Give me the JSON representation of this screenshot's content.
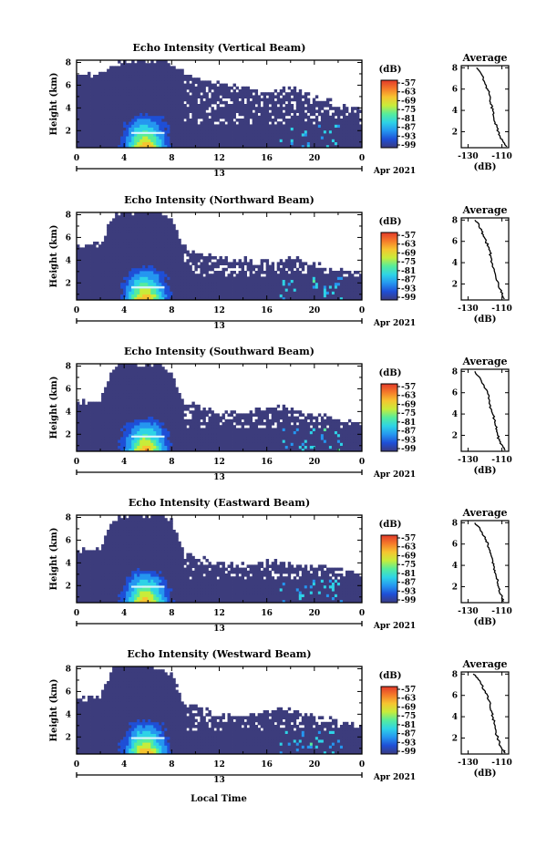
{
  "figure": {
    "xlabel": "Local Time",
    "colors": {
      "background_echo": "#3c3c7c",
      "colormap": [
        "#3a3a80",
        "#1f4fd6",
        "#2596f0",
        "#2ed3e6",
        "#56ec9c",
        "#c8ec3a",
        "#f6c430",
        "#f57a2a",
        "#e23a2a"
      ]
    }
  },
  "chart_data": [
    {
      "type": "heatmap",
      "title": "Echo Intensity (Vertical Beam)",
      "ylabel": "Height (km)",
      "xlim": [
        0,
        24
      ],
      "ylim": [
        0.5,
        8.2
      ],
      "x_ticks": [
        "0",
        "4",
        "8",
        "12",
        "16",
        "20",
        "0"
      ],
      "x_tick_values": [
        0,
        4,
        8,
        12,
        16,
        20,
        24
      ],
      "y_ticks": [
        "2",
        "4",
        "6",
        "8"
      ],
      "y_tick_values": [
        2,
        4,
        6,
        8
      ],
      "date_day": "13",
      "date_label": "Apr 2021",
      "colorbar": {
        "unit": "(dB)",
        "ticks": [
          "-57",
          "-63",
          "-69",
          "-75",
          "-81",
          "-87",
          "-93",
          "-99"
        ],
        "range": [
          -99,
          -57
        ]
      },
      "echo_top_km": [
        6.7,
        6.9,
        7.0,
        7.6,
        8.2,
        8.2,
        8.2,
        8.2,
        7.9,
        7.0,
        6.6,
        6.3,
        6.1,
        5.9,
        5.8,
        5.6,
        5.5,
        5.6,
        5.7,
        5.4,
        4.8,
        4.6,
        4.3,
        4.1,
        3.9
      ],
      "enhanced_layer_km": 1.8,
      "average_profile": {
        "title": "Average",
        "xlabel": "(dB)",
        "x_ticks": [
          "-130",
          "-110"
        ],
        "x_tick_values": [
          -130,
          -110
        ],
        "xlim": [
          -134,
          -106
        ],
        "y_ticks": [
          "2",
          "4",
          "6",
          "8"
        ],
        "y_tick_values": [
          2,
          4,
          6,
          8
        ],
        "ylim": [
          0.5,
          8.2
        ],
        "heights_km": [
          0.6,
          1.0,
          1.5,
          2.0,
          2.5,
          3.0,
          3.5,
          4.0,
          4.5,
          5.0,
          5.5,
          6.0,
          6.5,
          7.0,
          7.5,
          8.0
        ],
        "values_db": [
          -107.0,
          -109.0,
          -111.0,
          -112.0,
          -113.0,
          -114.5,
          -115.0,
          -115.5,
          -116.0,
          -117.0,
          -117.5,
          -118.5,
          -120.0,
          -121.0,
          -122.5,
          -125.0
        ]
      }
    },
    {
      "type": "heatmap",
      "title": "Echo Intensity (Northward Beam)",
      "ylabel": "Height (km)",
      "xlim": [
        0,
        24
      ],
      "ylim": [
        0.5,
        8.2
      ],
      "x_ticks": [
        "0",
        "4",
        "8",
        "12",
        "16",
        "20",
        "0"
      ],
      "x_tick_values": [
        0,
        4,
        8,
        12,
        16,
        20,
        24
      ],
      "y_ticks": [
        "2",
        "4",
        "6",
        "8"
      ],
      "y_tick_values": [
        2,
        4,
        6,
        8
      ],
      "date_day": "13",
      "date_label": "Apr 2021",
      "colorbar": {
        "unit": "(dB)",
        "ticks": [
          "-57",
          "-63",
          "-69",
          "-75",
          "-81",
          "-87",
          "-93",
          "-99"
        ],
        "range": [
          -99,
          -57
        ]
      },
      "echo_top_km": [
        5.2,
        5.3,
        5.3,
        7.8,
        8.2,
        8.2,
        8.2,
        8.1,
        7.6,
        5.2,
        4.8,
        4.5,
        4.2,
        4.1,
        4.0,
        4.0,
        3.9,
        3.8,
        4.2,
        4.0,
        3.6,
        3.4,
        3.2,
        3.0,
        2.8
      ],
      "enhanced_layer_km": 1.6,
      "average_profile": {
        "title": "Average",
        "xlabel": "(dB)",
        "x_ticks": [
          "-130",
          "-110"
        ],
        "x_tick_values": [
          -130,
          -110
        ],
        "xlim": [
          -134,
          -106
        ],
        "y_ticks": [
          "2",
          "4",
          "6",
          "8"
        ],
        "y_tick_values": [
          2,
          4,
          6,
          8
        ],
        "ylim": [
          0.5,
          8.2
        ],
        "heights_km": [
          0.6,
          1.0,
          1.5,
          2.0,
          2.5,
          3.0,
          3.5,
          4.0,
          4.5,
          5.0,
          5.5,
          6.0,
          6.5,
          7.0,
          7.5,
          8.0
        ],
        "values_db": [
          -108.5,
          -110.0,
          -111.0,
          -112.0,
          -113.5,
          -114.0,
          -115.0,
          -116.0,
          -116.5,
          -117.0,
          -118.0,
          -119.5,
          -121.0,
          -122.0,
          -123.5,
          -126.0
        ]
      }
    },
    {
      "type": "heatmap",
      "title": "Echo Intensity (Southward Beam)",
      "ylabel": "Height (km)",
      "xlim": [
        0,
        24
      ],
      "ylim": [
        0.5,
        8.2
      ],
      "x_ticks": [
        "0",
        "4",
        "8",
        "12",
        "16",
        "20",
        "0"
      ],
      "x_tick_values": [
        0,
        4,
        8,
        12,
        16,
        20,
        24
      ],
      "y_ticks": [
        "2",
        "4",
        "6",
        "8"
      ],
      "y_tick_values": [
        2,
        4,
        6,
        8
      ],
      "date_day": "13",
      "date_label": "Apr 2021",
      "colorbar": {
        "unit": "(dB)",
        "ticks": [
          "-57",
          "-63",
          "-69",
          "-75",
          "-81",
          "-87",
          "-93",
          "-99"
        ],
        "range": [
          -99,
          -57
        ]
      },
      "echo_top_km": [
        4.8,
        4.9,
        5.0,
        7.9,
        8.2,
        8.2,
        8.2,
        8.1,
        7.6,
        4.8,
        4.6,
        4.3,
        4.1,
        4.0,
        3.9,
        4.1,
        4.3,
        4.5,
        4.3,
        4.0,
        3.7,
        3.6,
        3.4,
        3.2,
        3.0
      ],
      "enhanced_layer_km": 1.8,
      "average_profile": {
        "title": "Average",
        "xlabel": "(dB)",
        "x_ticks": [
          "-130",
          "-110"
        ],
        "x_tick_values": [
          -130,
          -110
        ],
        "xlim": [
          -134,
          -106
        ],
        "y_ticks": [
          "2",
          "4",
          "6",
          "8"
        ],
        "y_tick_values": [
          2,
          4,
          6,
          8
        ],
        "ylim": [
          0.5,
          8.2
        ],
        "heights_km": [
          0.6,
          1.0,
          1.5,
          2.0,
          2.5,
          3.0,
          3.5,
          4.0,
          4.5,
          5.0,
          5.5,
          6.0,
          6.5,
          7.0,
          7.5,
          8.0
        ],
        "values_db": [
          -108.0,
          -109.5,
          -111.5,
          -112.5,
          -113.0,
          -114.0,
          -114.5,
          -115.5,
          -116.5,
          -117.5,
          -118.0,
          -118.5,
          -120.5,
          -122.0,
          -123.5,
          -126.0
        ]
      }
    },
    {
      "type": "heatmap",
      "title": "Echo Intensity (Eastward Beam)",
      "ylabel": "Height (km)",
      "xlim": [
        0,
        24
      ],
      "ylim": [
        0.5,
        8.2
      ],
      "x_ticks": [
        "0",
        "4",
        "8",
        "12",
        "16",
        "20",
        "0"
      ],
      "x_tick_values": [
        0,
        4,
        8,
        12,
        16,
        20,
        24
      ],
      "y_ticks": [
        "2",
        "4",
        "6",
        "8"
      ],
      "y_tick_values": [
        2,
        4,
        6,
        8
      ],
      "date_day": "13",
      "date_label": "Apr 2021",
      "colorbar": {
        "unit": "(dB)",
        "ticks": [
          "-57",
          "-63",
          "-69",
          "-75",
          "-81",
          "-87",
          "-93",
          "-99"
        ],
        "range": [
          -99,
          -57
        ]
      },
      "echo_top_km": [
        5.0,
        5.2,
        5.3,
        7.8,
        8.2,
        8.2,
        8.2,
        8.2,
        7.7,
        5.0,
        4.5,
        4.2,
        4.0,
        3.9,
        3.8,
        3.9,
        4.1,
        4.2,
        4.0,
        3.8,
        3.6,
        3.5,
        3.4,
        3.2,
        3.0
      ],
      "enhanced_layer_km": 1.9,
      "average_profile": {
        "title": "Average",
        "xlabel": "(dB)",
        "x_ticks": [
          "-130",
          "-110"
        ],
        "x_tick_values": [
          -130,
          -110
        ],
        "xlim": [
          -134,
          -106
        ],
        "y_ticks": [
          "2",
          "4",
          "6",
          "8"
        ],
        "y_tick_values": [
          2,
          4,
          6,
          8
        ],
        "ylim": [
          0.5,
          8.2
        ],
        "heights_km": [
          0.6,
          1.0,
          1.5,
          2.0,
          2.5,
          3.0,
          3.5,
          4.0,
          4.5,
          5.0,
          5.5,
          6.0,
          6.5,
          7.0,
          7.5,
          8.0
        ],
        "values_db": [
          -109.0,
          -110.0,
          -111.5,
          -112.0,
          -112.5,
          -113.5,
          -114.0,
          -115.0,
          -115.5,
          -116.5,
          -117.5,
          -118.0,
          -120.0,
          -121.5,
          -123.0,
          -126.0
        ]
      }
    },
    {
      "type": "heatmap",
      "title": "Echo Intensity (Westward Beam)",
      "ylabel": "Height (km)",
      "xlim": [
        0,
        24
      ],
      "ylim": [
        0.5,
        8.2
      ],
      "x_ticks": [
        "0",
        "4",
        "8",
        "12",
        "16",
        "20",
        "0"
      ],
      "x_tick_values": [
        0,
        4,
        8,
        12,
        16,
        20,
        24
      ],
      "y_ticks": [
        "2",
        "4",
        "6",
        "8"
      ],
      "y_tick_values": [
        2,
        4,
        6,
        8
      ],
      "date_day": "13",
      "date_label": "Apr 2021",
      "colorbar": {
        "unit": "(dB)",
        "ticks": [
          "-57",
          "-63",
          "-69",
          "-75",
          "-81",
          "-87",
          "-93",
          "-99"
        ],
        "range": [
          -99,
          -57
        ]
      },
      "echo_top_km": [
        5.3,
        5.5,
        5.6,
        7.9,
        8.2,
        8.2,
        8.2,
        8.1,
        7.6,
        4.9,
        4.6,
        4.3,
        4.0,
        3.9,
        3.8,
        4.0,
        4.3,
        4.5,
        4.3,
        4.1,
        3.8,
        3.6,
        3.4,
        3.2,
        3.0
      ],
      "enhanced_layer_km": 1.9,
      "average_profile": {
        "title": "Average",
        "xlabel": "(dB)",
        "x_ticks": [
          "-130",
          "-110"
        ],
        "x_tick_values": [
          -130,
          -110
        ],
        "xlim": [
          -134,
          -106
        ],
        "y_ticks": [
          "2",
          "4",
          "6",
          "8"
        ],
        "y_tick_values": [
          2,
          4,
          6,
          8
        ],
        "ylim": [
          0.5,
          8.2
        ],
        "heights_km": [
          0.6,
          1.0,
          1.5,
          2.0,
          2.5,
          3.0,
          3.5,
          4.0,
          4.5,
          5.0,
          5.5,
          6.0,
          6.5,
          7.0,
          7.5,
          8.0
        ],
        "values_db": [
          -108.0,
          -110.0,
          -111.5,
          -112.5,
          -113.5,
          -114.0,
          -114.5,
          -115.5,
          -116.0,
          -117.0,
          -117.5,
          -118.5,
          -120.5,
          -122.0,
          -124.0,
          -127.0
        ]
      }
    }
  ]
}
